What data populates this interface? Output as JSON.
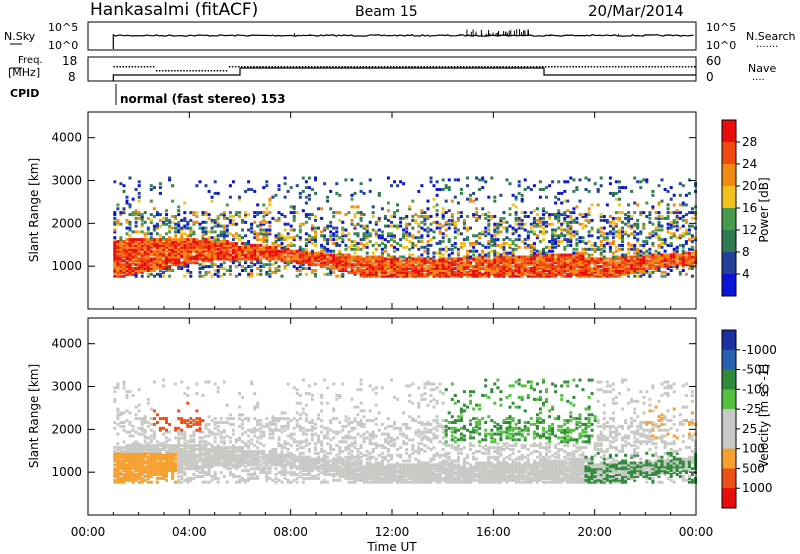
{
  "header": {
    "station": "Hankasalmi (fitACF)",
    "beam": "Beam 15",
    "date": "20/Mar/2014"
  },
  "nsky_panel": {
    "left_label": "N.Sky",
    "right_label": "N.Search",
    "right_legend": ".......",
    "left_ticks": [
      "10^5",
      "10^0"
    ],
    "right_ticks": [
      "10^5",
      "10^0"
    ]
  },
  "freq_panel": {
    "left_label_1": "Freq.",
    "left_label_2": "[MHz]",
    "left_ticks": [
      "18",
      "8"
    ],
    "right_label": "Nave",
    "right_legend": "....",
    "right_ticks": [
      "60",
      "0"
    ]
  },
  "cpid": {
    "label": "CPID",
    "mode": "normal (fast stereo) 153"
  },
  "colors": {
    "power": [
      "#0a14d6",
      "#22429a",
      "#2e7a52",
      "#4a9a4e",
      "#f2c21a",
      "#f28a12",
      "#f04a10",
      "#e80c0c"
    ],
    "velocity": [
      "#e80c0c",
      "#f05018",
      "#f7a030",
      "#c8c8c4",
      "#c8c8c4",
      "#55c040",
      "#2f8a3a",
      "#2a60b0",
      "#1a30a0"
    ]
  },
  "chart_data": [
    {
      "type": "heatmap",
      "panel": "power",
      "ylabel": "Slant Range [km]",
      "y_ticks": [
        1000,
        2000,
        3000,
        4000
      ],
      "ylim": [
        0,
        4600
      ],
      "colorbar_label": "Power [dB]",
      "colorbar_ticks": [
        "4",
        "8",
        "12",
        "16",
        "20",
        "24",
        "28"
      ],
      "echo_region_km": {
        "start_hour": 1.0,
        "end_hour": 24.0,
        "min_range": 800,
        "max_range": 3100
      }
    },
    {
      "type": "heatmap",
      "panel": "velocity",
      "ylabel": "Slant Range [km]",
      "y_ticks": [
        1000,
        2000,
        3000,
        4000
      ],
      "ylim": [
        0,
        4600
      ],
      "colorbar_label": "Velocity [m s^-1]",
      "colorbar_ticks": [
        "1000",
        "500",
        "100",
        "25",
        "-25",
        "-100",
        "-500",
        "-1000"
      ],
      "echo_region_km": {
        "start_hour": 1.0,
        "end_hour": 24.0,
        "min_range": 800,
        "max_range": 3200
      }
    }
  ],
  "x_axis": {
    "label": "Time UT",
    "ticks": [
      "00:00",
      "04:00",
      "08:00",
      "12:00",
      "16:00",
      "20:00",
      "00:00"
    ]
  }
}
